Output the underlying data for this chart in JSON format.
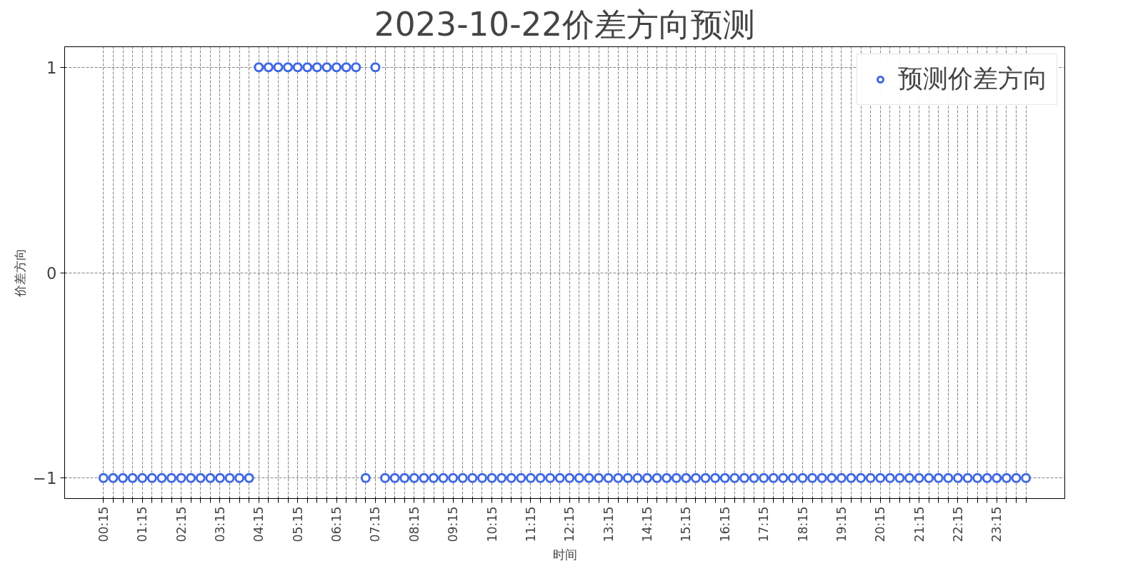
{
  "chart_data": {
    "type": "scatter",
    "title": "2023-10-22价差方向预测",
    "xlabel": "时间",
    "ylabel": "价差方向",
    "categories": [
      "00:15",
      null,
      null,
      null,
      "01:15",
      null,
      null,
      null,
      "02:15",
      null,
      null,
      null,
      "03:15",
      null,
      null,
      null,
      "04:15",
      null,
      null,
      null,
      "05:15",
      null,
      null,
      null,
      "06:15",
      null,
      null,
      null,
      "07:15",
      null,
      null,
      null,
      "08:15",
      null,
      null,
      null,
      "09:15",
      null,
      null,
      null,
      "10:15",
      null,
      null,
      null,
      "11:15",
      null,
      null,
      null,
      "12:15",
      null,
      null,
      null,
      "13:15",
      null,
      null,
      null,
      "14:15",
      null,
      null,
      null,
      "15:15",
      null,
      null,
      null,
      "16:15",
      null,
      null,
      null,
      "17:15",
      null,
      null,
      null,
      "18:15",
      null,
      null,
      null,
      "19:15",
      null,
      null,
      null,
      "20:15",
      null,
      null,
      null,
      "21:15",
      null,
      null,
      null,
      "22:15",
      null,
      null,
      null,
      "23:15",
      null,
      null,
      null
    ],
    "series": [
      {
        "name": "预测价差方向",
        "color": "#4169e1",
        "values": [
          -1,
          -1,
          -1,
          -1,
          -1,
          -1,
          -1,
          -1,
          -1,
          -1,
          -1,
          -1,
          -1,
          -1,
          -1,
          -1,
          1,
          1,
          1,
          1,
          1,
          1,
          1,
          1,
          1,
          1,
          1,
          -1,
          1,
          -1,
          -1,
          -1,
          -1,
          -1,
          -1,
          -1,
          -1,
          -1,
          -1,
          -1,
          -1,
          -1,
          -1,
          -1,
          -1,
          -1,
          -1,
          -1,
          -1,
          -1,
          -1,
          -1,
          -1,
          -1,
          -1,
          -1,
          -1,
          -1,
          -1,
          -1,
          -1,
          -1,
          -1,
          -1,
          -1,
          -1,
          -1,
          -1,
          -1,
          -1,
          -1,
          -1,
          -1,
          -1,
          -1,
          -1,
          -1,
          -1,
          -1,
          -1,
          -1,
          -1,
          -1,
          -1,
          -1,
          -1,
          -1,
          -1,
          -1,
          -1,
          -1,
          -1,
          -1,
          -1,
          -1,
          -1
        ]
      }
    ],
    "ylim": [
      -1.1,
      1.1
    ],
    "yticks": [
      -1,
      0,
      1
    ],
    "grid": true,
    "legend": "top right",
    "marker": "circle"
  }
}
